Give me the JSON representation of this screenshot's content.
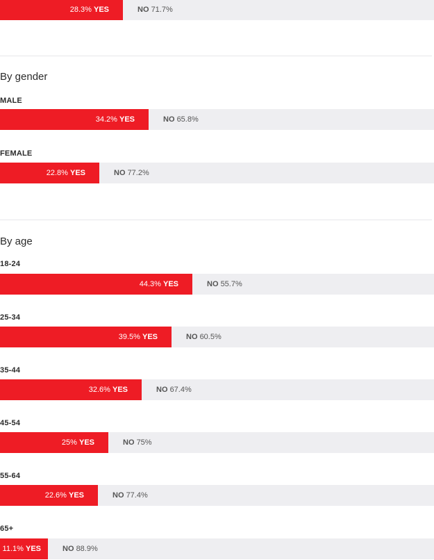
{
  "chart_data": [
    {
      "type": "bar",
      "orientation": "horizontal",
      "stacked": true,
      "categories": [
        ""
      ],
      "series": [
        {
          "name": "YES",
          "values": [
            28.3
          ]
        },
        {
          "name": "NO",
          "values": [
            71.7
          ]
        }
      ]
    },
    {
      "type": "bar",
      "orientation": "horizontal",
      "stacked": true,
      "title": "By gender",
      "categories": [
        "MALE",
        "FEMALE"
      ],
      "series": [
        {
          "name": "YES",
          "values": [
            34.2,
            22.8
          ]
        },
        {
          "name": "NO",
          "values": [
            65.8,
            77.2
          ]
        }
      ]
    },
    {
      "type": "bar",
      "orientation": "horizontal",
      "stacked": true,
      "title": "By age",
      "categories": [
        "18-24",
        "25-34",
        "35-44",
        "45-54",
        "55-64",
        "65+"
      ],
      "series": [
        {
          "name": "YES",
          "values": [
            44.3,
            39.5,
            32.6,
            25,
            22.6,
            11.1
          ]
        },
        {
          "name": "NO",
          "values": [
            55.7,
            60.5,
            67.4,
            75,
            77.4,
            88.9
          ]
        }
      ]
    }
  ],
  "labels": {
    "yes": "YES",
    "no": "NO"
  },
  "colors": {
    "yes": "#ee1c25",
    "track": "#eeeef1"
  },
  "sections": [
    {
      "title": "",
      "rows": [
        {
          "label": "",
          "yes_text": "28.3%",
          "no_text": "71.7%"
        }
      ]
    },
    {
      "title": "By gender",
      "rows": [
        {
          "label": "MALE",
          "yes_text": "34.2%",
          "no_text": "65.8%"
        },
        {
          "label": "FEMALE",
          "yes_text": "22.8%",
          "no_text": "77.2%"
        }
      ]
    },
    {
      "title": "By age",
      "rows": [
        {
          "label": "18-24",
          "yes_text": "44.3%",
          "no_text": "55.7%"
        },
        {
          "label": "25-34",
          "yes_text": "39.5%",
          "no_text": "60.5%"
        },
        {
          "label": "35-44",
          "yes_text": "32.6%",
          "no_text": "67.4%"
        },
        {
          "label": "45-54",
          "yes_text": "25%",
          "no_text": "75%"
        },
        {
          "label": "55-64",
          "yes_text": "22.6%",
          "no_text": "77.4%"
        },
        {
          "label": "65+",
          "yes_text": "11.1%",
          "no_text": "88.9%"
        }
      ]
    }
  ]
}
